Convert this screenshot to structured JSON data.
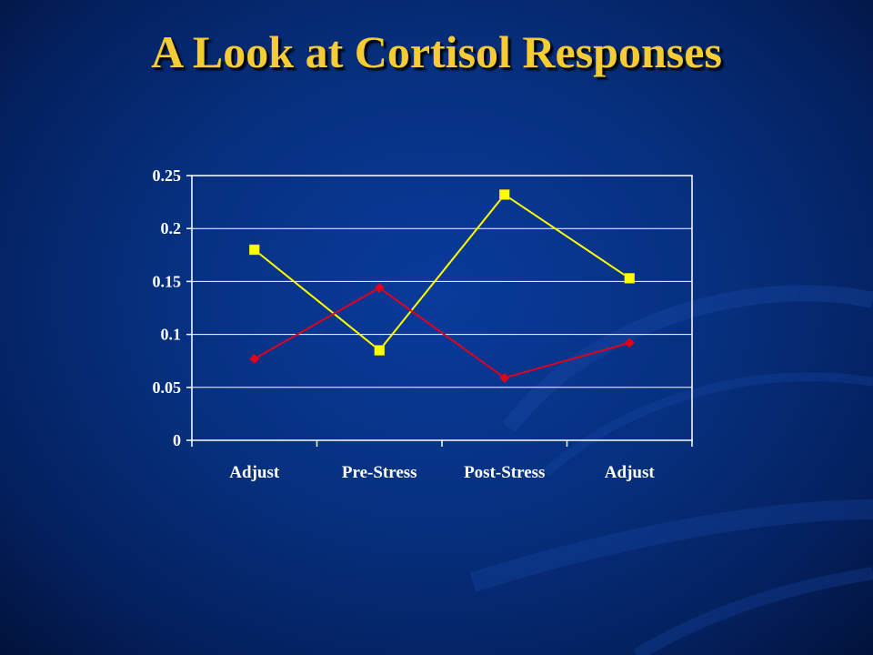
{
  "slide": {
    "title": "A Look at Cortisol Responses"
  },
  "colors": {
    "background": "#06307f",
    "title": "#f5cc33",
    "series_a": "#ffff00",
    "series_b": "#e0001b",
    "axis": "#ffffff"
  },
  "chart_data": {
    "type": "line",
    "title": "",
    "xlabel": "",
    "ylabel": "",
    "categories": [
      "Adjust",
      "Pre-Stress",
      "Post-Stress",
      "Adjust"
    ],
    "ylim": [
      0,
      0.25
    ],
    "yticks": [
      "0",
      "0.05",
      "0.1",
      "0.15",
      "0.2",
      "0.25"
    ],
    "grid": true,
    "legend": "none",
    "series": [
      {
        "color": "#ffff00",
        "marker": "square",
        "values": [
          0.18,
          0.085,
          0.232,
          0.153
        ]
      },
      {
        "color": "#e0001b",
        "marker": "diamond",
        "values": [
          0.077,
          0.144,
          0.059,
          0.092
        ]
      }
    ]
  }
}
